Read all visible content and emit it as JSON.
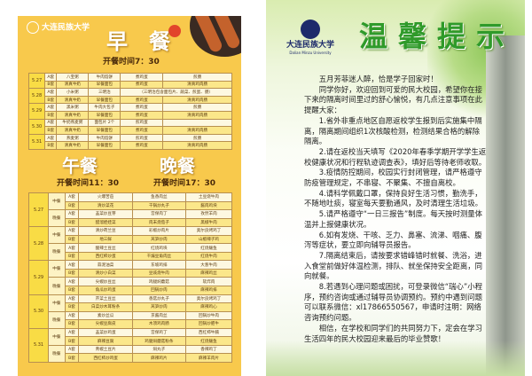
{
  "left": {
    "logo": "大连民族大学",
    "breakfast": {
      "title": "早　餐",
      "time": "开餐时间7：30",
      "days": [
        {
          "date": "5.27",
          "rows": [
            [
              "A套",
              "八宝粥",
              "牛肉馅饼",
              "煮鸡蛋",
              "煎肠"
            ],
            [
              "B套",
              "清真牛奶",
              "早餐面包",
              "煮鸡蛋",
              "清真鸡肉肠"
            ]
          ]
        },
        {
          "date": "5.28",
          "rows": [
            [
              "A套",
              "小米粥",
              "三明治",
              "（三明治包含面包片、蔬菜、煎蛋、肠）",
              null
            ],
            [
              "B套",
              "清真牛奶",
              "早餐面包",
              "煮鸡蛋",
              "清真鸡肉肠"
            ]
          ]
        },
        {
          "date": "5.29",
          "rows": [
            [
              "A套",
              "黑米粥",
              "牛肉大包子",
              "煮鸡蛋",
              "煎肠"
            ],
            [
              "B套",
              "清真牛奶",
              "早餐面包",
              "煮鸡蛋",
              "清真鸡肉肠"
            ]
          ]
        },
        {
          "date": "5.30",
          "rows": [
            [
              "A套",
              "牛奶燕麦粥",
              "面包片 2个",
              "煎鸡蛋",
              ""
            ],
            [
              "B套",
              "清真牛奶",
              "早餐面包",
              "煮鸡蛋",
              "清真鸡肉肠"
            ]
          ]
        },
        {
          "date": "5.31",
          "rows": [
            [
              "A套",
              "燕麦粥",
              "牛肉馅饼",
              "煎鸡蛋",
              "煎肠"
            ],
            [
              "B套",
              "清真牛奶",
              "早餐面包",
              "煮鸡蛋",
              "清真鸡肉肠"
            ]
          ]
        }
      ]
    },
    "lunch": {
      "title": "午餐",
      "time": "开餐时间11：30"
    },
    "dinner": {
      "title": "晚餐",
      "time": "开餐时间17：30"
    },
    "lunch_dinner": [
      {
        "date": "5.27",
        "meals": [
          {
            "meal": "中餐",
            "rows": [
              [
                "A套",
                "火爆苦苣",
                "鱼香肉丝",
                "土豆烧牛肉"
              ],
              [
                "B套",
                "清炒菜花",
                "干锅炒丸子",
                "酱肉鸡块"
              ]
            ]
          },
          {
            "meal": "晚餐",
            "rows": [
              [
                "A套",
                "韭菜炒豆芽",
                "宫保肉丁",
                "孜然羊肉"
              ],
              [
                "B套",
                "醋溜娃娃菜",
                "肉末烧茄子",
                "黑椒牛肉"
              ]
            ]
          }
        ]
      },
      {
        "date": "5.28",
        "meals": [
          {
            "meal": "中餐",
            "rows": [
              [
                "A套",
                "清炒荷兰豆",
                "彩椒炒肉片",
                "奥尔良烤鸡丁"
              ],
              [
                "B套",
                "地三鲜",
                "莴笋炒肉",
                "山椒辣子鸡"
              ]
            ]
          },
          {
            "meal": "晚餐",
            "rows": [
              [
                "A套",
                "酸辣土豆丝",
                "红烧鸡块",
                "红烧鲅鱼"
              ],
              [
                "B套",
                "西红柿炒蛋",
                "干煸豆角肉丝",
                "红烧牛肉"
              ]
            ]
          }
        ]
      },
      {
        "date": "5.29",
        "meals": [
          {
            "meal": "中餐",
            "rows": [
              [
                "A套",
                "蒜泥油菜",
                "东坡鸡排",
                "大葱牛肉"
              ],
              [
                "B套",
                "清炒小白菜",
                "豆豉烧牛肉",
                "麻辣鸡丝"
              ]
            ]
          },
          {
            "meal": "晚餐",
            "rows": [
              [
                "A套",
                "尖椒炒豆丝",
                "鸡腿焖蘑菇",
                "软炸肉"
              ],
              [
                "B套",
                "角瓜炒鸡蛋",
                "回锅炒肉",
                "麻辣鸡排"
              ]
            ]
          }
        ]
      },
      {
        "date": "5.30",
        "meals": [
          {
            "meal": "中餐",
            "rows": [
              [
                "A套",
                "芹菜土豆丝",
                "香菇炒丸子",
                "奥尔良烤鸡丁"
              ],
              [
                "B套",
                "白菜炒木耳粉条",
                "莴笋炒肉",
                "麻辣鸡心"
              ]
            ]
          },
          {
            "meal": "晚餐",
            "rows": [
              [
                "A套",
                "素炒丝瓜",
                "京酱肉丝",
                "回锅炒牛肉"
              ],
              [
                "B套",
                "尖椒豆腐皮",
                "木须鸡肉肠",
                "回锅炒肥牛"
              ]
            ]
          }
        ]
      },
      {
        "date": "5.31",
        "meals": [
          {
            "meal": "中餐",
            "rows": [
              [
                "A套",
                "韭菜炒鸡蛋",
                "宫保鸡丁",
                "西红柿牛腩"
              ],
              [
                "B套",
                "麻辣豆腐",
                "鸡腿焖蘑菇粉条",
                "红烧鲅鱼"
              ]
            ]
          },
          {
            "meal": "晚餐",
            "rows": [
              [
                "A套",
                "青椒土豆片",
                "焖丸子",
                "香辣鸡丁"
              ],
              [
                "B套",
                "西红柿炒鸡蛋",
                "麻辣鸡片",
                "麻辣羊肉片"
              ]
            ]
          }
        ]
      }
    ],
    "colors": {
      "page": "#f8c94c",
      "date_cell": "#f9dc45",
      "row_a": "#fdf8e1",
      "row_b": "#fbe78a"
    }
  },
  "right": {
    "logo_name": "大连民族大学",
    "logo_en": "Dalian Minzu University",
    "title": "温馨提示",
    "paragraphs": [
      "五月芳菲迷人醉，恰是学子回家时！",
      "同学你好，欢迎回到可爱的民大校园，希望你在接下来的隔离时间里过的舒心愉悦，有几点注意事项在此提醒大家：",
      "1.省外非重点地区自愿返校学生报到后实施集中隔离，隔离期间组织1次核酸检测，检测结果合格的解除隔离。",
      "2.请在返校当天填写《2020年春季学期开学学生返校健康状况和行程轨迹调查表》，填好后等待老师收取。",
      "3.疫情防控期间，校园实行封闭管理，请严格遵守防疫管理规定，不串寝、不聚集、不擅自离校。",
      "4.请科学佩戴口罩，保持良好生活习惯，勤洗手，不随地吐痰，寝室每天要勤通风，及时清理生活垃圾。",
      "5.请严格遵守“一日三报告”制度。每天按时测量体温并上报健康状况。",
      "6.如有发烧、干咳、乏力、鼻塞、流涕、咽痛、腹泻等症状，要立即向辅导员报告。",
      "7.隔离结束后，请按要求错峰错时就餐、洗浴，进入食堂前做好体温检测，排队、就坐保持安全距离，同向就餐。",
      "8.若遇到心理问题或困扰，可登录微信“瑞心”小程序，预约咨询或通过辅导员协调预约。预约中遇到问题可以联系微信：xl17866550567，申请时注明：网络咨询预约问题。",
      "相信，在学校和同学们的共同努力下，定会在学习生活四年的民大校园迎来最后的毕业赞歌！"
    ],
    "colors": {
      "title": "#2f9a2a"
    }
  }
}
